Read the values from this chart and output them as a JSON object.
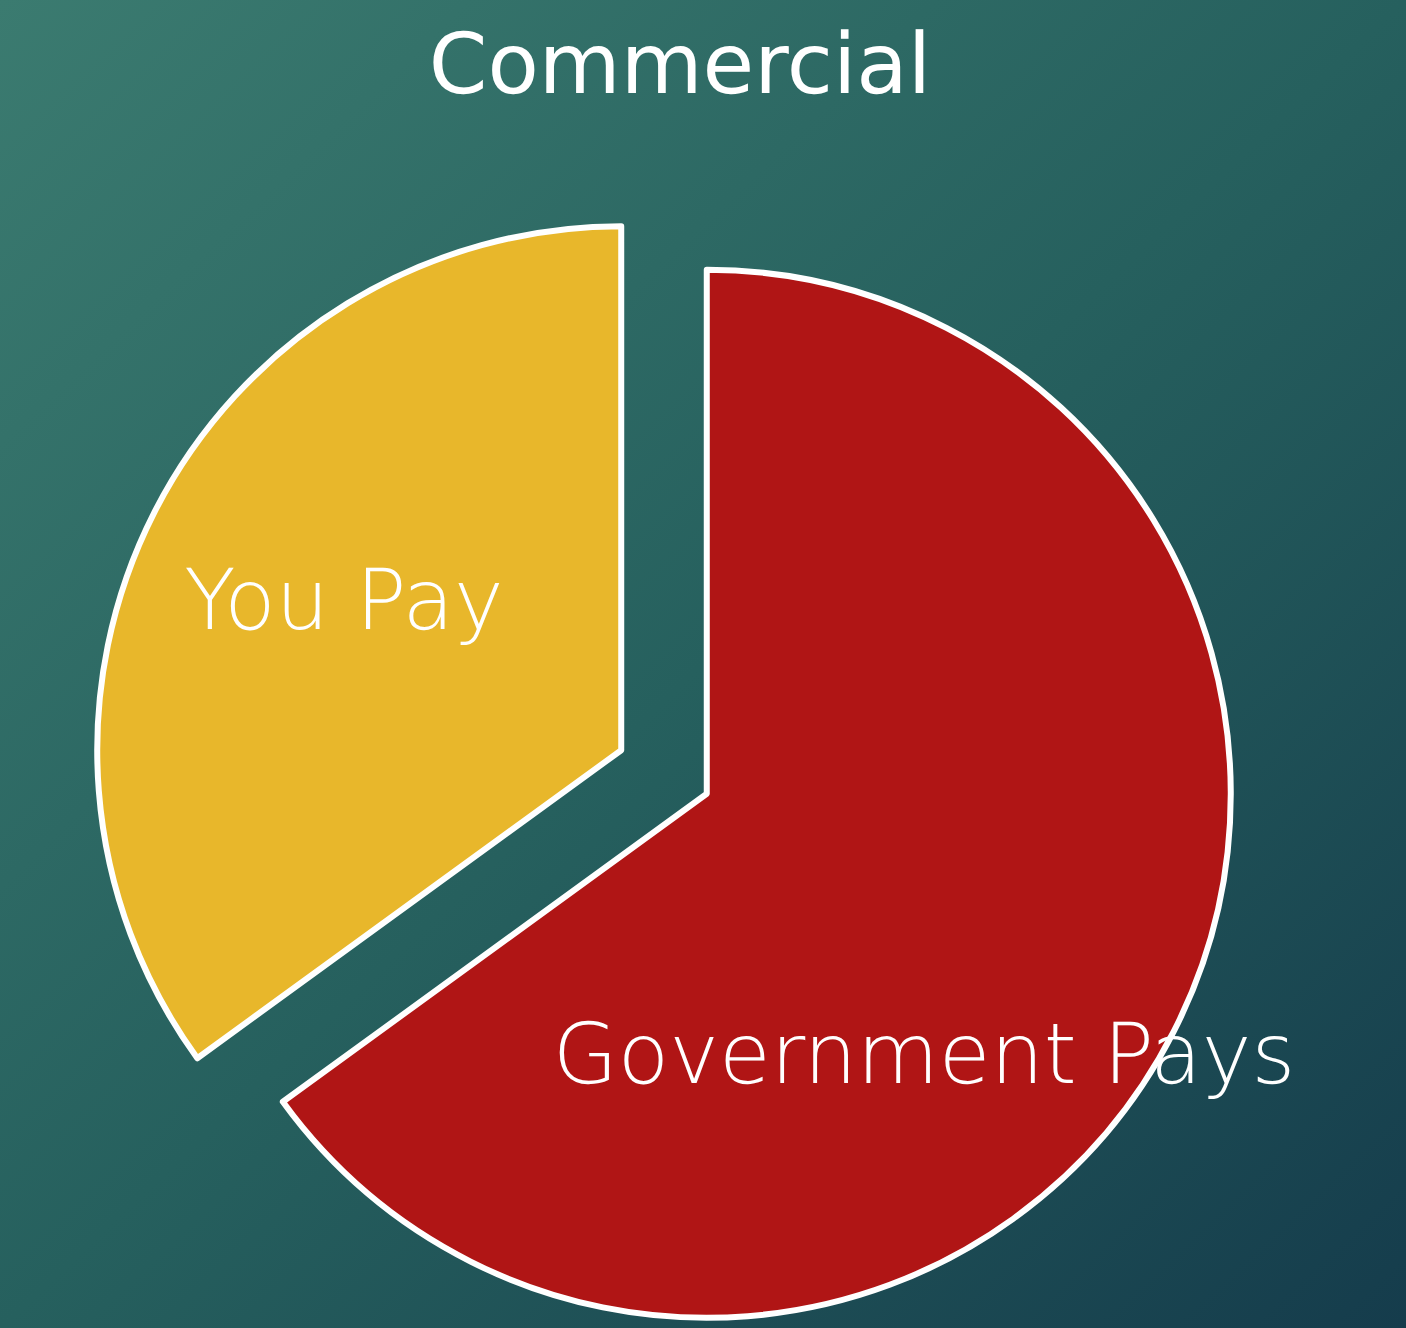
{
  "chart_data": {
    "type": "pie",
    "title": "Commercial",
    "categories": [
      "Government Pays",
      "You Pay"
    ],
    "values": [
      65,
      35
    ],
    "colors": [
      "#b01515",
      "#e8b72b"
    ]
  }
}
